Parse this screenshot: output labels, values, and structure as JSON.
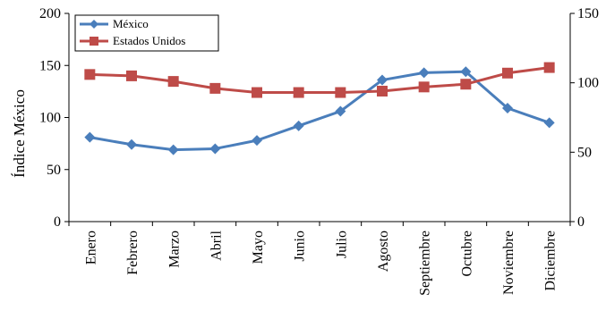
{
  "chart_data": {
    "type": "line",
    "title": "",
    "categories": [
      "Enero",
      "Febrero",
      "Marzo",
      "Abril",
      "Mayo",
      "Junio",
      "Julio",
      "Agosto",
      "Septiembre",
      "Octubre",
      "Noviembre",
      "Diciembre"
    ],
    "ylabel": "Índice México",
    "ylim": [
      0,
      200
    ],
    "yticks": [
      0,
      50,
      100,
      150,
      200
    ],
    "y2label": "",
    "y2lim": [
      0,
      150
    ],
    "y2ticks": [
      0,
      50,
      100,
      150
    ],
    "legend_position": "top-left",
    "grid": false,
    "series": [
      {
        "name": "México",
        "axis": "left",
        "color": "#4a7ebb",
        "marker": "diamond",
        "values": [
          81,
          74,
          69,
          70,
          78,
          92,
          106,
          136,
          143,
          144,
          109,
          95
        ]
      },
      {
        "name": "Estados Unidos",
        "axis": "right",
        "color": "#be4b48",
        "marker": "square",
        "values": [
          106,
          105,
          101,
          96,
          93,
          93,
          93,
          94,
          97,
          99,
          107,
          111
        ]
      }
    ]
  }
}
